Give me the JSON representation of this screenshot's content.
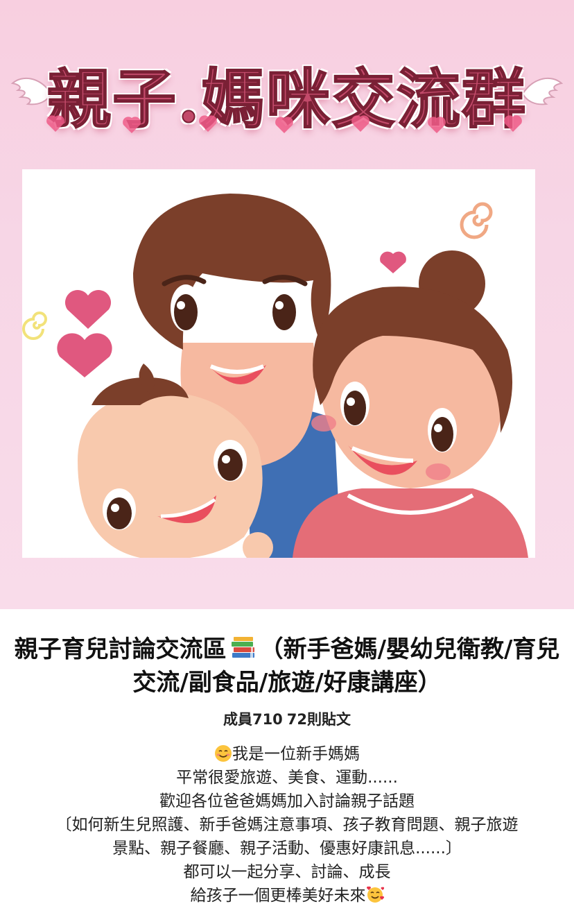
{
  "banner": {
    "title": "親子.媽咪交流群"
  },
  "group": {
    "title_before_icon": "親子育兒討論交流區",
    "title_icon": "books-icon",
    "title_after_icon": "（新手爸媽/嬰幼兒衛教/育兒交流/副食品/旅遊/好康講座）",
    "members": "成員710",
    "posts": "72則貼文"
  },
  "description": {
    "line1_icon": "smiling-face-icon",
    "line1_text": "我是一位新手媽媽",
    "line2": "平常很愛旅遊、美食、運動......",
    "line3": "歡迎各位爸爸媽媽加入討論親子話題",
    "line4": "〔如何新生兒照護、新手爸媽注意事項、孩子教育問題、親子旅遊",
    "line5": "景點、親子餐廳、親子活動、優惠好康訊息......〕",
    "line6": "都可以一起分享、討論、成長",
    "line7_text": "給孩子一個更棒美好未來",
    "line7_icon": "smiling-face-with-hearts-icon"
  },
  "colors": {
    "banner_bg": "#f8cfe0",
    "title_pink": "#c24a6a",
    "hair_brown": "#7b3f2a",
    "skin": "#f6b9a0"
  }
}
